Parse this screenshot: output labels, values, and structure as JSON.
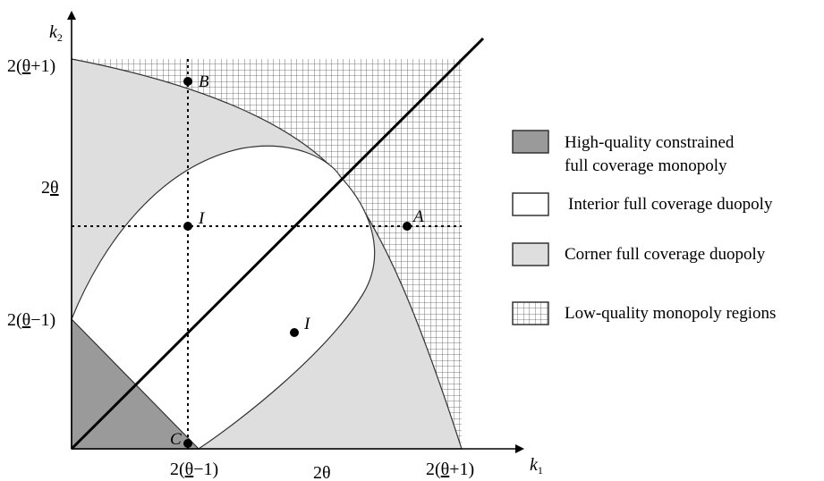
{
  "axes": {
    "x_name": "k",
    "x_sub": "1",
    "y_name": "k",
    "y_sub": "2"
  },
  "x_ticks": [
    {
      "pre": "2(",
      "u": "θ",
      "post": "−1)"
    },
    {
      "pre": "2θ",
      "u": "",
      "post": ""
    },
    {
      "pre": "2(",
      "u": "θ",
      "post": "+1)"
    }
  ],
  "y_ticks": [
    {
      "pre": "2(",
      "u": "θ",
      "post": "+1)"
    },
    {
      "pre": "2",
      "u": "θ",
      "post": ""
    },
    {
      "pre": "2(",
      "u": "θ",
      "post": "−1)"
    }
  ],
  "points": {
    "A": "A",
    "B": "B",
    "C": "C",
    "I_upper": "I",
    "I_lower": "I"
  },
  "legend": [
    {
      "line1": "High-quality constrained",
      "line2": "full coverage monopoly",
      "fill": "#9a9a9a"
    },
    {
      "line1": "Interior full coverage duopoly",
      "line2": "",
      "fill": "#ffffff"
    },
    {
      "line1": "Corner full coverage duopoly",
      "line2": "",
      "fill": "#dedede"
    },
    {
      "line1": "Low-quality monopoly regions",
      "line2": "",
      "fill": "hatch"
    }
  ],
  "colors": {
    "dark_region": "#9a9a9a",
    "light_region": "#dedede",
    "grid": "#555555"
  }
}
